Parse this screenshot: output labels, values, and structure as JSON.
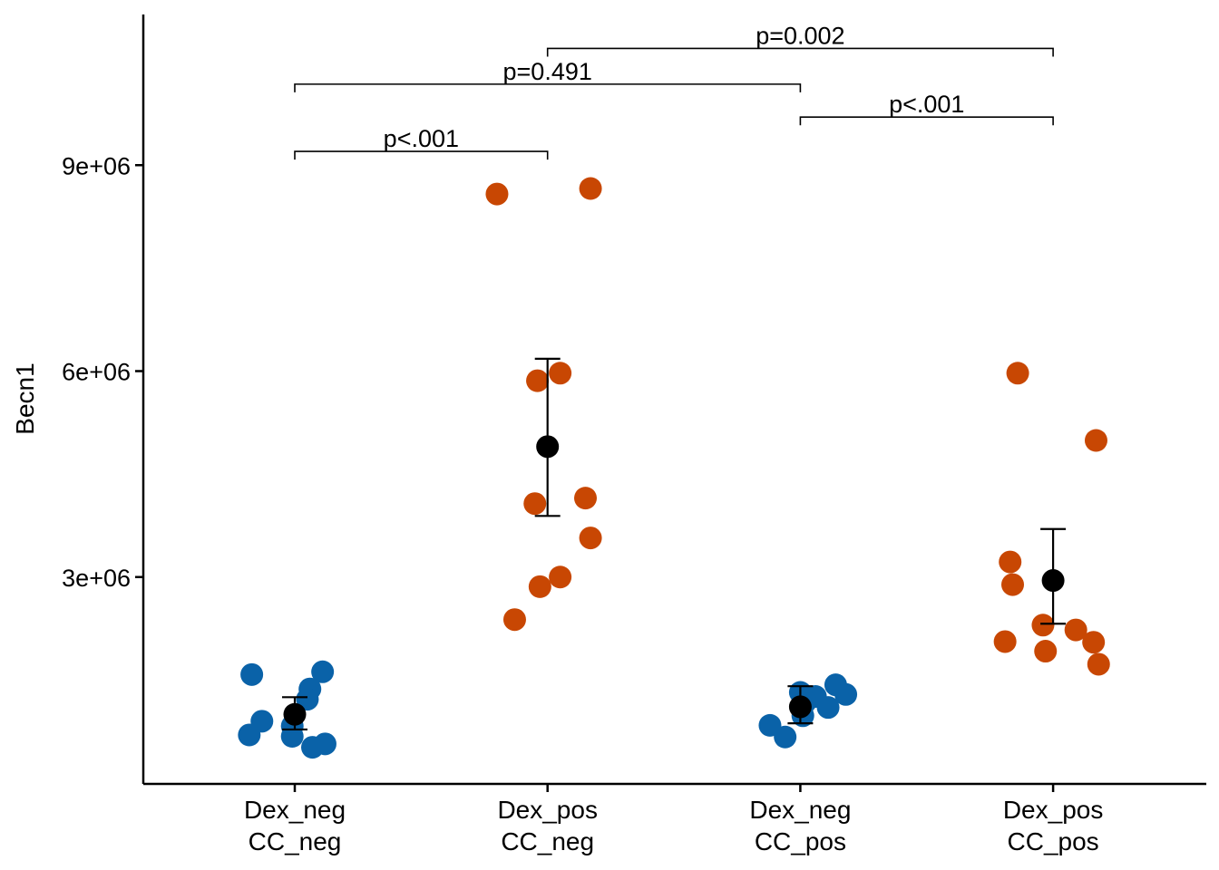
{
  "chart_data": {
    "type": "scatter",
    "title": "",
    "xlabel": "",
    "ylabel": "Becn1",
    "ylim": [
      0,
      11200000
    ],
    "yticks": [
      {
        "value": 3000000,
        "label": "3e+06"
      },
      {
        "value": 6000000,
        "label": "6e+06"
      },
      {
        "value": 9000000,
        "label": "9e+06"
      }
    ],
    "categories": [
      {
        "line1": "Dex_neg",
        "line2": "CC_neg"
      },
      {
        "line1": "Dex_pos",
        "line2": "CC_neg"
      },
      {
        "line1": "Dex_neg",
        "line2": "CC_pos"
      },
      {
        "line1": "Dex_pos",
        "line2": "CC_pos"
      }
    ],
    "groups": [
      {
        "color": "#0a62a8",
        "points": [
          {
            "dx": -0.17,
            "y": 1580000
          },
          {
            "dx": 0.11,
            "y": 1620000
          },
          {
            "dx": 0.06,
            "y": 1370000
          },
          {
            "dx": 0.05,
            "y": 1220000
          },
          {
            "dx": -0.13,
            "y": 900000
          },
          {
            "dx": -0.01,
            "y": 830000
          },
          {
            "dx": -0.18,
            "y": 700000
          },
          {
            "dx": -0.01,
            "y": 680000
          },
          {
            "dx": 0.12,
            "y": 570000
          },
          {
            "dx": 0.07,
            "y": 520000
          }
        ],
        "mean": 1000000,
        "err_low": 780000,
        "err_high": 1250000
      },
      {
        "color": "#c84703",
        "points": [
          {
            "dx": -0.2,
            "y": 8580000
          },
          {
            "dx": 0.17,
            "y": 8660000
          },
          {
            "dx": 0.05,
            "y": 5970000
          },
          {
            "dx": -0.04,
            "y": 5860000
          },
          {
            "dx": 0.15,
            "y": 4150000
          },
          {
            "dx": -0.05,
            "y": 4070000
          },
          {
            "dx": 0.17,
            "y": 3570000
          },
          {
            "dx": 0.05,
            "y": 3000000
          },
          {
            "dx": -0.03,
            "y": 2860000
          },
          {
            "dx": -0.13,
            "y": 2380000
          }
        ],
        "mean": 4900000,
        "err_low": 3890000,
        "err_high": 6180000
      },
      {
        "color": "#0a62a8",
        "points": [
          {
            "dx": 0.14,
            "y": 1430000
          },
          {
            "dx": 0.0,
            "y": 1320000
          },
          {
            "dx": 0.18,
            "y": 1290000
          },
          {
            "dx": 0.06,
            "y": 1260000
          },
          {
            "dx": 0.02,
            "y": 1180000
          },
          {
            "dx": 0.11,
            "y": 1100000
          },
          {
            "dx": 0.01,
            "y": 980000
          },
          {
            "dx": -0.12,
            "y": 840000
          },
          {
            "dx": -0.06,
            "y": 670000
          }
        ],
        "mean": 1110000,
        "err_low": 870000,
        "err_high": 1410000
      },
      {
        "color": "#c84703",
        "points": [
          {
            "dx": -0.14,
            "y": 5970000
          },
          {
            "dx": 0.17,
            "y": 4990000
          },
          {
            "dx": -0.17,
            "y": 3220000
          },
          {
            "dx": -0.16,
            "y": 2890000
          },
          {
            "dx": -0.04,
            "y": 2300000
          },
          {
            "dx": 0.09,
            "y": 2230000
          },
          {
            "dx": -0.19,
            "y": 2060000
          },
          {
            "dx": 0.16,
            "y": 2050000
          },
          {
            "dx": -0.03,
            "y": 1920000
          },
          {
            "dx": 0.18,
            "y": 1730000
          }
        ],
        "mean": 2950000,
        "err_low": 2320000,
        "err_high": 3700000
      }
    ],
    "comparisons": [
      {
        "from": 1,
        "to": 2,
        "label": "p<.001",
        "y": 9200000
      },
      {
        "from": 1,
        "to": 3,
        "label": "p=0.491",
        "y": 10180000
      },
      {
        "from": 2,
        "to": 4,
        "label": "p=0.002",
        "y": 10700000
      },
      {
        "from": 3,
        "to": 4,
        "label": "p<.001",
        "y": 9700000
      }
    ],
    "grid": false,
    "legend": "none"
  }
}
